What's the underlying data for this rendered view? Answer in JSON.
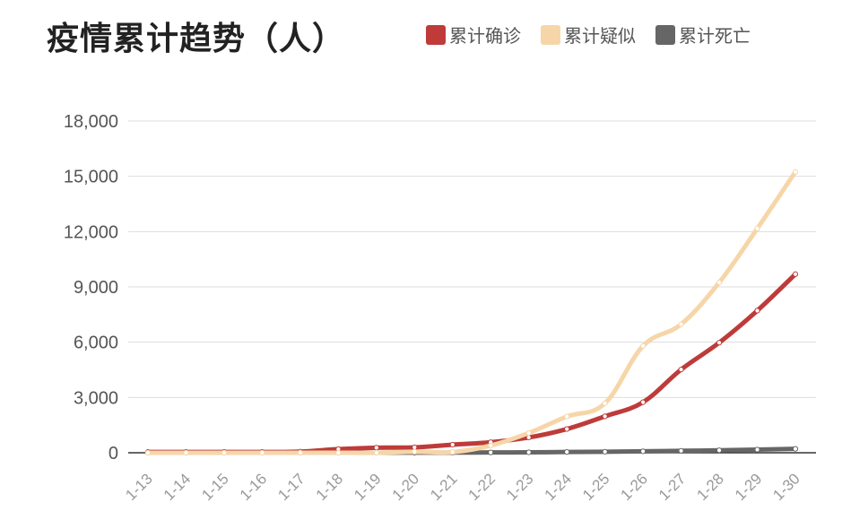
{
  "chart_data": {
    "type": "line",
    "title": "疫情累计趋势（人）",
    "xlabel": "",
    "ylabel": "",
    "ylim": [
      0,
      18000
    ],
    "yticks": [
      "0",
      "3,000",
      "6,000",
      "9,000",
      "12,000",
      "15,000",
      "18,000"
    ],
    "ytick_values": [
      0,
      3000,
      6000,
      9000,
      12000,
      15000,
      18000
    ],
    "grid": true,
    "legend_position": "top-right",
    "categories": [
      "1-13",
      "1-14",
      "1-15",
      "1-16",
      "1-17",
      "1-18",
      "1-19",
      "1-20",
      "1-21",
      "1-22",
      "1-23",
      "1-24",
      "1-25",
      "1-26",
      "1-27",
      "1-28",
      "1-29",
      "1-30"
    ],
    "series": [
      {
        "name": "累计确诊",
        "color": "#be3b3a",
        "values": [
          41,
          41,
          41,
          45,
          62,
          198,
          275,
          291,
          440,
          571,
          830,
          1287,
          1975,
          2744,
          4515,
          5974,
          7711,
          9692
        ]
      },
      {
        "name": "累计疑似",
        "color": "#f6d6a8",
        "values": [
          0,
          0,
          0,
          0,
          0,
          0,
          0,
          54,
          37,
          393,
          1072,
          1965,
          2684,
          5794,
          6973,
          9239,
          12167,
          15238
        ]
      },
      {
        "name": "累计死亡",
        "color": "#666666",
        "values": [
          1,
          1,
          2,
          2,
          2,
          3,
          3,
          6,
          9,
          17,
          25,
          41,
          56,
          80,
          106,
          132,
          170,
          213
        ]
      }
    ]
  }
}
